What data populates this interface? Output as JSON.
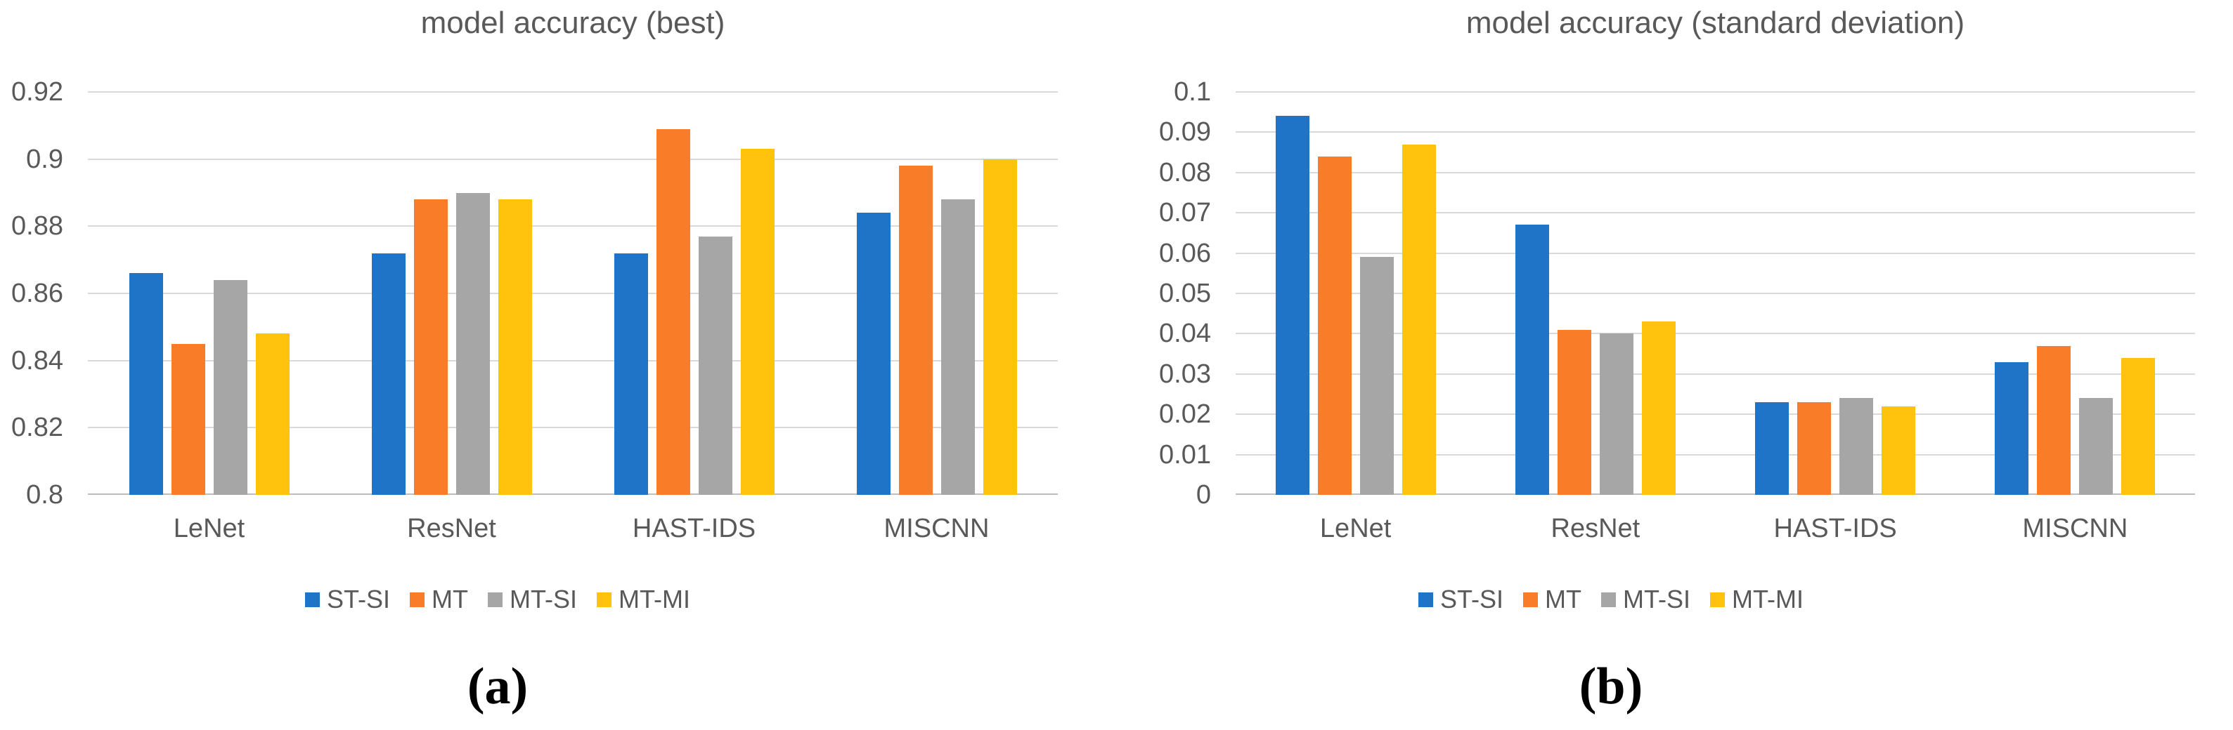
{
  "figure": {
    "background": "#ffffff"
  },
  "colors": {
    "gridline": "#D9D9D9",
    "axis_line": "#BFBFBF",
    "chart_text": "#595959",
    "caption_text": "#000000",
    "series_blue": "#2074C7",
    "series_orange": "#F97D28",
    "series_gray": "#A6A6A6",
    "series_yellow": "#FFC30D"
  },
  "chart_data": [
    {
      "id": "a",
      "type": "bar",
      "title": "model accuracy (best)",
      "caption": "(a)",
      "categories": [
        "LeNet",
        "ResNet",
        "HAST-IDS",
        "MISCNN"
      ],
      "series": [
        {
          "name": "ST-SI",
          "color": "#2074C7",
          "values": [
            0.866,
            0.872,
            0.872,
            0.884
          ]
        },
        {
          "name": "MT",
          "color": "#F97D28",
          "values": [
            0.845,
            0.888,
            0.909,
            0.898
          ]
        },
        {
          "name": "MT-SI",
          "color": "#A6A6A6",
          "values": [
            0.864,
            0.89,
            0.877,
            0.888
          ]
        },
        {
          "name": "MT-MI",
          "color": "#FFC30D",
          "values": [
            0.848,
            0.888,
            0.903,
            0.9
          ]
        }
      ],
      "y_axis": {
        "min": 0.8,
        "max": 0.92,
        "step": 0.02,
        "tick_labels": [
          "0.8",
          "0.82",
          "0.84",
          "0.86",
          "0.88",
          "0.9",
          "0.92"
        ]
      },
      "grid": true,
      "legend_position": "bottom",
      "legend_labels": [
        "ST-SI",
        "MT",
        "MT-SI",
        "MT-MI"
      ]
    },
    {
      "id": "b",
      "type": "bar",
      "title": "model accuracy (standard deviation)",
      "caption": "(b)",
      "categories": [
        "LeNet",
        "ResNet",
        "HAST-IDS",
        "MISCNN"
      ],
      "series": [
        {
          "name": "ST-SI",
          "color": "#2074C7",
          "values": [
            0.094,
            0.067,
            0.023,
            0.033
          ]
        },
        {
          "name": "MT",
          "color": "#F97D28",
          "values": [
            0.084,
            0.041,
            0.023,
            0.037
          ]
        },
        {
          "name": "MT-SI",
          "color": "#A6A6A6",
          "values": [
            0.059,
            0.04,
            0.024,
            0.024
          ]
        },
        {
          "name": "MT-MI",
          "color": "#FFC30D",
          "values": [
            0.087,
            0.043,
            0.022,
            0.034
          ]
        }
      ],
      "y_axis": {
        "min": 0,
        "max": 0.1,
        "step": 0.01,
        "tick_labels": [
          "0",
          "0.01",
          "0.02",
          "0.03",
          "0.04",
          "0.05",
          "0.06",
          "0.07",
          "0.08",
          "0.09",
          "0.1"
        ]
      },
      "grid": true,
      "legend_position": "bottom",
      "legend_labels": [
        "ST-SI",
        "MT",
        "MT-SI",
        "MT-MI"
      ]
    }
  ]
}
